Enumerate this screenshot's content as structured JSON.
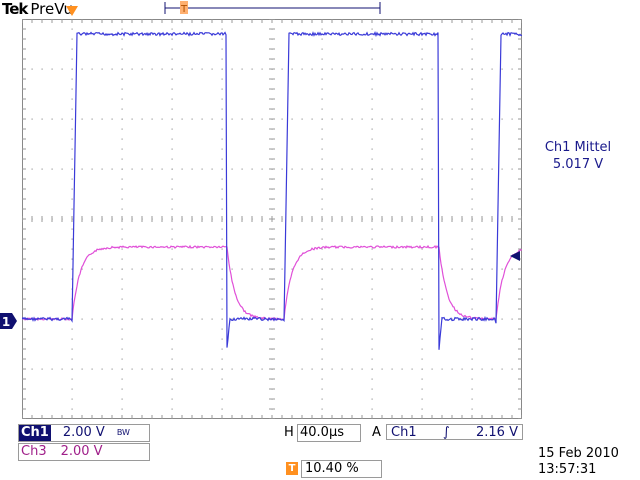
{
  "header": {
    "brand": "Tek",
    "mode": "PreVu"
  },
  "measurement": {
    "label": "Ch1 Mittel",
    "value": "5.017 V"
  },
  "channels": [
    {
      "tag": "Ch1",
      "scale": "2.00 V",
      "bw": "BW"
    },
    {
      "tag": "Ch3",
      "scale": "2.00 V"
    }
  ],
  "horizontal": {
    "label": "H",
    "value": "40.0µs"
  },
  "trigger": {
    "mode": "A",
    "source": "Ch1",
    "slope": "∫",
    "level": "2.16 V",
    "position": "10.40 %",
    "marker": "T"
  },
  "ground_marker": "1",
  "date": "15 Feb  2010",
  "time": "13:57:31",
  "colors": {
    "ch1": "#3a3ad8",
    "ch3": "#e050d8",
    "grid": "#9a9a9a"
  }
}
